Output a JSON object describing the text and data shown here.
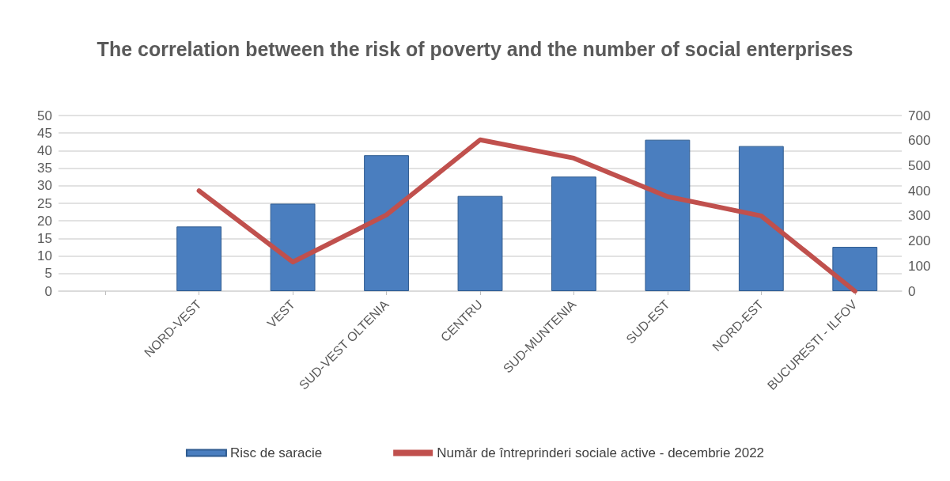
{
  "chart_data": {
    "type": "bar",
    "title": "The correlation between the risk of poverty and the number of social enterprises",
    "categories": [
      null,
      "NORD-VEST",
      "VEST",
      "SUD-VEST OLTENIA",
      "CENTRU",
      "SUD-MUNTENIA",
      "SUD-EST",
      "NORD-EST",
      "BUCURESTI - ILFOV"
    ],
    "series": [
      {
        "name": "Risc de saracie",
        "color": "#4a7ebf",
        "values": [
          null,
          18.4,
          24.9,
          38.7,
          27.1,
          32.6,
          43.1,
          41.3,
          12.6
        ]
      },
      {
        "name": "Număr de întreprinderi sociale active - decembrie 2022",
        "type": "line",
        "axis": "y2",
        "color": "#c0504d",
        "values": [
          null,
          400,
          116,
          304,
          603,
          530,
          377,
          300,
          0
        ]
      }
    ],
    "ylim": [
      0,
      50
    ],
    "yticks": [
      0,
      5,
      10,
      15,
      20,
      25,
      30,
      35,
      40,
      45,
      50
    ],
    "y2lim": [
      0,
      700
    ],
    "y2ticks": [
      0,
      100,
      200,
      300,
      400,
      500,
      600,
      700
    ],
    "grid": "y",
    "legend": "bottom",
    "marker": "none"
  }
}
